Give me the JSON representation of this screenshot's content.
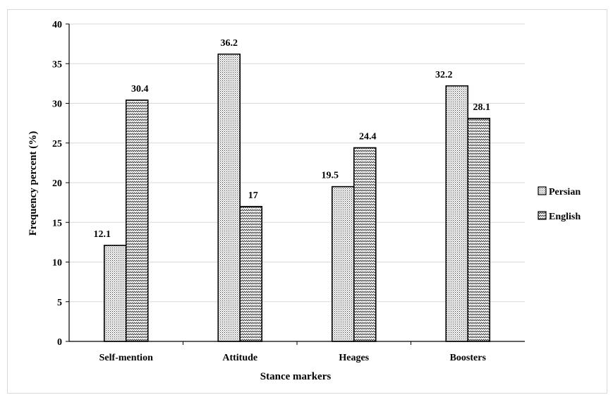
{
  "chart_data": {
    "type": "bar",
    "title": "",
    "xlabel": "Stance markers",
    "ylabel": "Frequency percent (%)",
    "ylim": [
      0,
      40
    ],
    "yticks": [
      0,
      5,
      10,
      15,
      20,
      25,
      30,
      35,
      40
    ],
    "categories": [
      "Self-mention",
      "Attitude",
      "Heages",
      "Boosters"
    ],
    "series": [
      {
        "name": "Persian",
        "values": [
          12.1,
          36.2,
          19.5,
          32.2
        ],
        "value_labels": [
          "12.1",
          "36.2",
          "19.5",
          "32.2"
        ]
      },
      {
        "name": "English",
        "values": [
          30.4,
          17,
          24.4,
          28.1
        ],
        "value_labels": [
          "30.4",
          "17",
          "24.4",
          "28.1"
        ]
      }
    ],
    "grid": true,
    "legend": "right"
  }
}
